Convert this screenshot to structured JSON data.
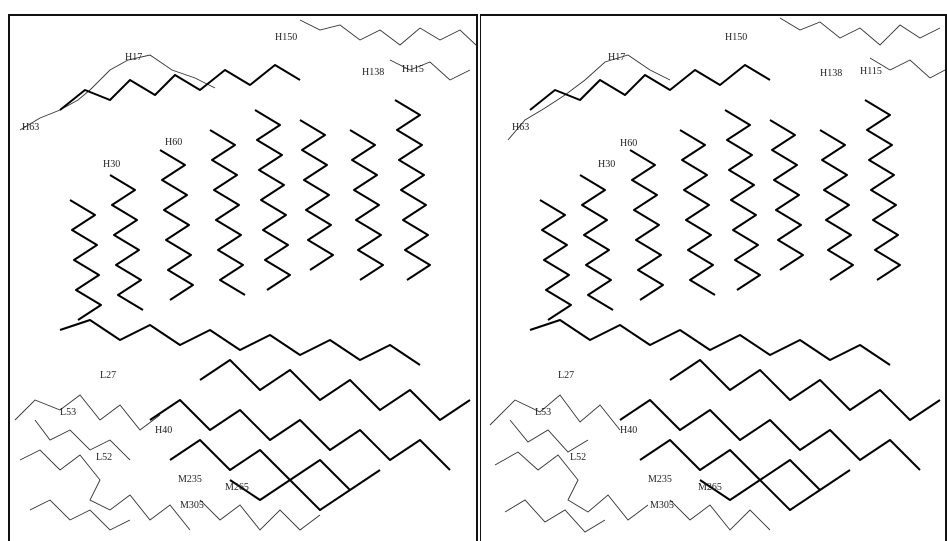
{
  "figure": {
    "panels": [
      {
        "id": "left",
        "labels": [
          "H150",
          "H17",
          "H138",
          "H115",
          "H63",
          "H60",
          "H30",
          "L27",
          "L53",
          "L52",
          "H40",
          "M305",
          "M265",
          "M235"
        ]
      },
      {
        "id": "right",
        "labels": [
          "H150",
          "H17",
          "H138",
          "H115",
          "H63",
          "H60",
          "H30",
          "L27",
          "L53",
          "L52",
          "H40",
          "M305",
          "M265",
          "M235"
        ]
      }
    ]
  }
}
